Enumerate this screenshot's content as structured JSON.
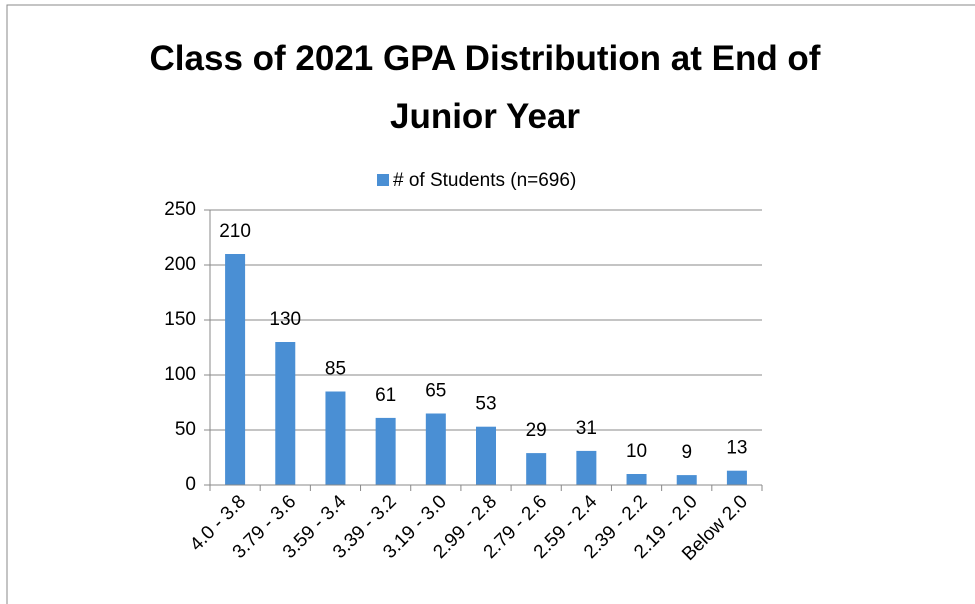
{
  "chart_data": {
    "type": "bar",
    "title": "Class of 2021 GPA Distribution at End of Junior Year",
    "legend": "# of Students (n=696)",
    "categories": [
      "4.0 - 3.8",
      "3.79 - 3.6",
      "3.59 - 3.4",
      "3.39 - 3.2",
      "3.19 - 3.0",
      "2.99 - 2.8",
      "2.79 - 2.6",
      "2.59 - 2.4",
      "2.39 - 2.2",
      "2.19 - 2.0",
      "Below 2.0"
    ],
    "series": [
      {
        "name": "# of Students (n=696)",
        "color": "#4a8fd4",
        "values": [
          210,
          130,
          85,
          61,
          65,
          53,
          29,
          31,
          10,
          9,
          13
        ]
      }
    ],
    "ylim": [
      0,
      250
    ],
    "yticks": [
      0,
      50,
      100,
      150,
      200,
      250
    ],
    "grid": true
  }
}
